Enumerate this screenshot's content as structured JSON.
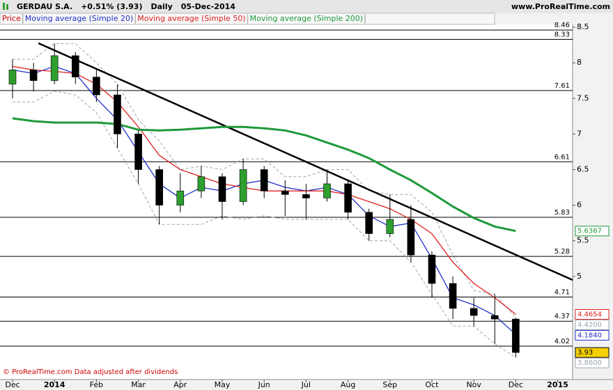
{
  "header": {
    "symbol": "GERDAU S.A.",
    "change": "+0.51% (3.93)",
    "period": "Daily",
    "date": "05-Dec-2014",
    "site": "www.ProRealTime.com"
  },
  "footer": "© ProRealTime.com  Data adjusted after dividends",
  "chart_data": {
    "type": "candlestick",
    "price_name": "Price",
    "price_color": "#cc0000",
    "up_color": "#2e9e2e",
    "down_color": "#000000",
    "categories": [
      "Dec",
      null,
      "2014",
      null,
      "Feb",
      null,
      "Mar",
      null,
      "Apr",
      null,
      "May",
      null,
      "Jun",
      null,
      "Jul",
      null,
      "Aug",
      null,
      "Sep",
      null,
      "Oct",
      null,
      "Nov",
      null,
      "Dec",
      null,
      "2015"
    ],
    "open": [
      7.7,
      7.9,
      7.75,
      8.1,
      7.8,
      7.55,
      7.0,
      6.5,
      6.0,
      6.2,
      6.4,
      6.05,
      6.5,
      6.2,
      6.15,
      6.1,
      6.3,
      5.9,
      5.6,
      5.8,
      5.3,
      4.9,
      4.55,
      4.45,
      4.4,
      null,
      null
    ],
    "high": [
      8.05,
      8.0,
      8.27,
      8.15,
      7.9,
      7.7,
      7.05,
      6.55,
      6.45,
      6.55,
      6.45,
      6.65,
      6.55,
      6.35,
      6.3,
      6.5,
      6.35,
      5.95,
      6.15,
      6.0,
      5.35,
      5.0,
      4.7,
      4.75,
      4.42,
      null,
      null
    ],
    "low": [
      7.5,
      7.6,
      7.7,
      7.7,
      7.45,
      6.8,
      6.3,
      5.73,
      5.9,
      6.1,
      5.8,
      6.0,
      6.1,
      5.85,
      5.8,
      6.05,
      5.8,
      5.5,
      5.55,
      5.2,
      4.7,
      4.4,
      4.3,
      4.05,
      3.86,
      null,
      null
    ],
    "close": [
      7.9,
      7.75,
      8.1,
      7.8,
      7.55,
      7.0,
      6.5,
      6.0,
      6.2,
      6.4,
      6.05,
      6.5,
      6.2,
      6.15,
      6.1,
      6.3,
      5.9,
      5.6,
      5.8,
      5.3,
      4.9,
      4.55,
      4.45,
      4.4,
      3.93,
      null,
      null
    ],
    "series": [
      {
        "name": "Moving average (Simple 20)",
        "color": "#1f2fc8",
        "values": [
          7.9,
          7.85,
          7.95,
          7.85,
          7.5,
          7.2,
          6.75,
          6.3,
          6.1,
          6.25,
          6.2,
          6.3,
          6.35,
          6.25,
          6.2,
          6.25,
          6.15,
          5.85,
          5.7,
          5.75,
          5.25,
          4.7,
          4.6,
          4.45,
          4.184,
          null,
          null
        ],
        "value_labels": {
          "24": "4.1840"
        }
      },
      {
        "name": "Moving average (Simple 50)",
        "color": "#e02020",
        "values": [
          7.95,
          7.9,
          7.88,
          7.85,
          7.7,
          7.45,
          7.1,
          6.7,
          6.5,
          6.4,
          6.3,
          6.25,
          6.2,
          6.2,
          6.2,
          6.2,
          6.15,
          6.05,
          5.95,
          5.8,
          5.6,
          5.2,
          4.9,
          4.7,
          4.4654,
          null,
          null
        ]
      },
      {
        "name": "Moving average (Simple 200)",
        "color": "#1e9a3a",
        "values": [
          7.22,
          7.18,
          7.16,
          7.16,
          7.16,
          7.14,
          7.06,
          7.05,
          7.06,
          7.08,
          7.1,
          7.1,
          7.08,
          7.05,
          6.98,
          6.88,
          6.78,
          6.66,
          6.5,
          6.35,
          6.17,
          5.98,
          5.82,
          5.7,
          5.6367,
          null,
          null
        ]
      }
    ],
    "channel": {
      "color": "#9aa4b0",
      "upper": [
        8.05,
        8.05,
        8.27,
        8.27,
        8.0,
        7.7,
        7.2,
        6.9,
        6.5,
        6.55,
        6.5,
        6.65,
        6.65,
        6.4,
        6.4,
        6.5,
        6.5,
        6.2,
        6.15,
        6.15,
        5.9,
        5.3,
        4.8,
        4.75,
        4.42,
        null,
        null
      ],
      "lower": [
        7.45,
        7.45,
        7.6,
        7.55,
        7.3,
        6.8,
        6.3,
        5.73,
        5.73,
        5.73,
        5.85,
        5.8,
        5.85,
        5.8,
        5.8,
        5.8,
        5.8,
        5.5,
        5.5,
        5.2,
        4.75,
        4.3,
        4.3,
        4.05,
        3.86,
        null,
        null
      ],
      "upper_label": "4.4200",
      "lower_label": "3.8600"
    },
    "levels": [
      8.46,
      8.33,
      7.61,
      6.61,
      5.83,
      5.28,
      4.71,
      4.37,
      4.02
    ],
    "ylim": [
      3.55,
      8.54
    ],
    "yticks": [
      8.5,
      8,
      7.5,
      7,
      6.5,
      6,
      5.5,
      5
    ]
  }
}
